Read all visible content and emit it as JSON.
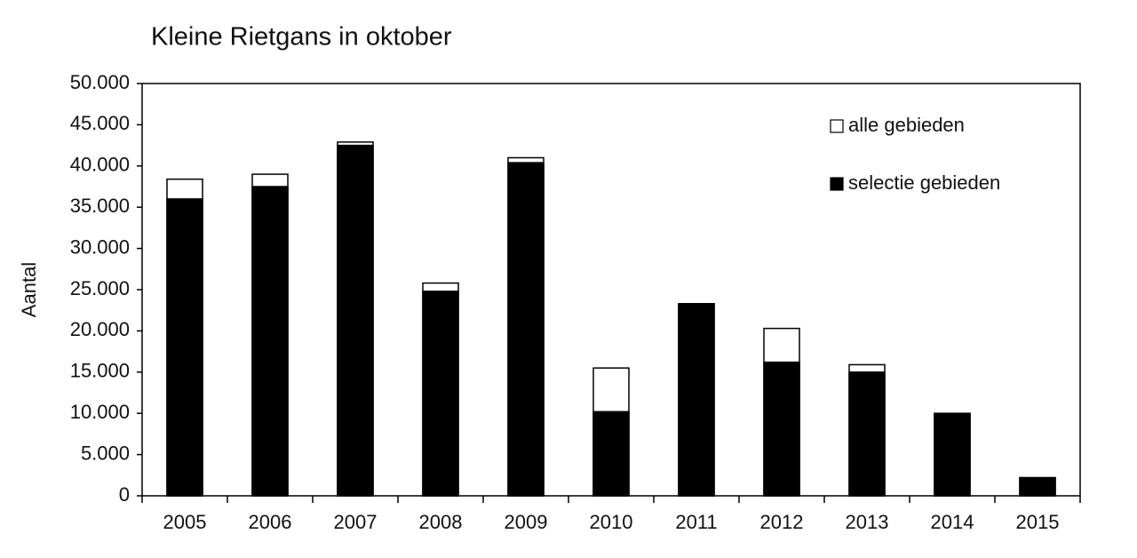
{
  "chart_data": {
    "type": "bar",
    "barmode": "overlay",
    "title": "Kleine Rietgans in oktober",
    "y_label": "Aantal",
    "categories": [
      "2005",
      "2006",
      "2007",
      "2008",
      "2009",
      "2010",
      "2011",
      "2012",
      "2013",
      "2014",
      "2015"
    ],
    "series": [
      {
        "name": "alle gebieden",
        "color": "#ffffff",
        "values": [
          38400,
          39000,
          42900,
          25800,
          41000,
          15500,
          23300,
          20300,
          15900,
          10000,
          2200
        ]
      },
      {
        "name": "selectie gebieden",
        "color": "#000000",
        "values": [
          36000,
          37500,
          42500,
          24800,
          40400,
          10200,
          23300,
          16200,
          15000,
          10000,
          2200
        ]
      }
    ],
    "ylim": [
      0,
      50000
    ],
    "yticks": [
      0,
      {
        "value": 5000,
        "label": "5.000"
      },
      {
        "value": 10000,
        "label": "10.000"
      },
      {
        "value": 15000,
        "label": "15.000"
      },
      {
        "value": 20000,
        "label": "20.000"
      },
      {
        "value": 25000,
        "label": "25.000"
      },
      {
        "value": 30000,
        "label": "30.000"
      },
      {
        "value": 35000,
        "label": "35.000"
      },
      {
        "value": 40000,
        "label": "40.000"
      },
      {
        "value": 45000,
        "label": "45.000"
      },
      {
        "value": 50000,
        "label": "50.000"
      }
    ],
    "grid": false,
    "legend": "upper right"
  }
}
